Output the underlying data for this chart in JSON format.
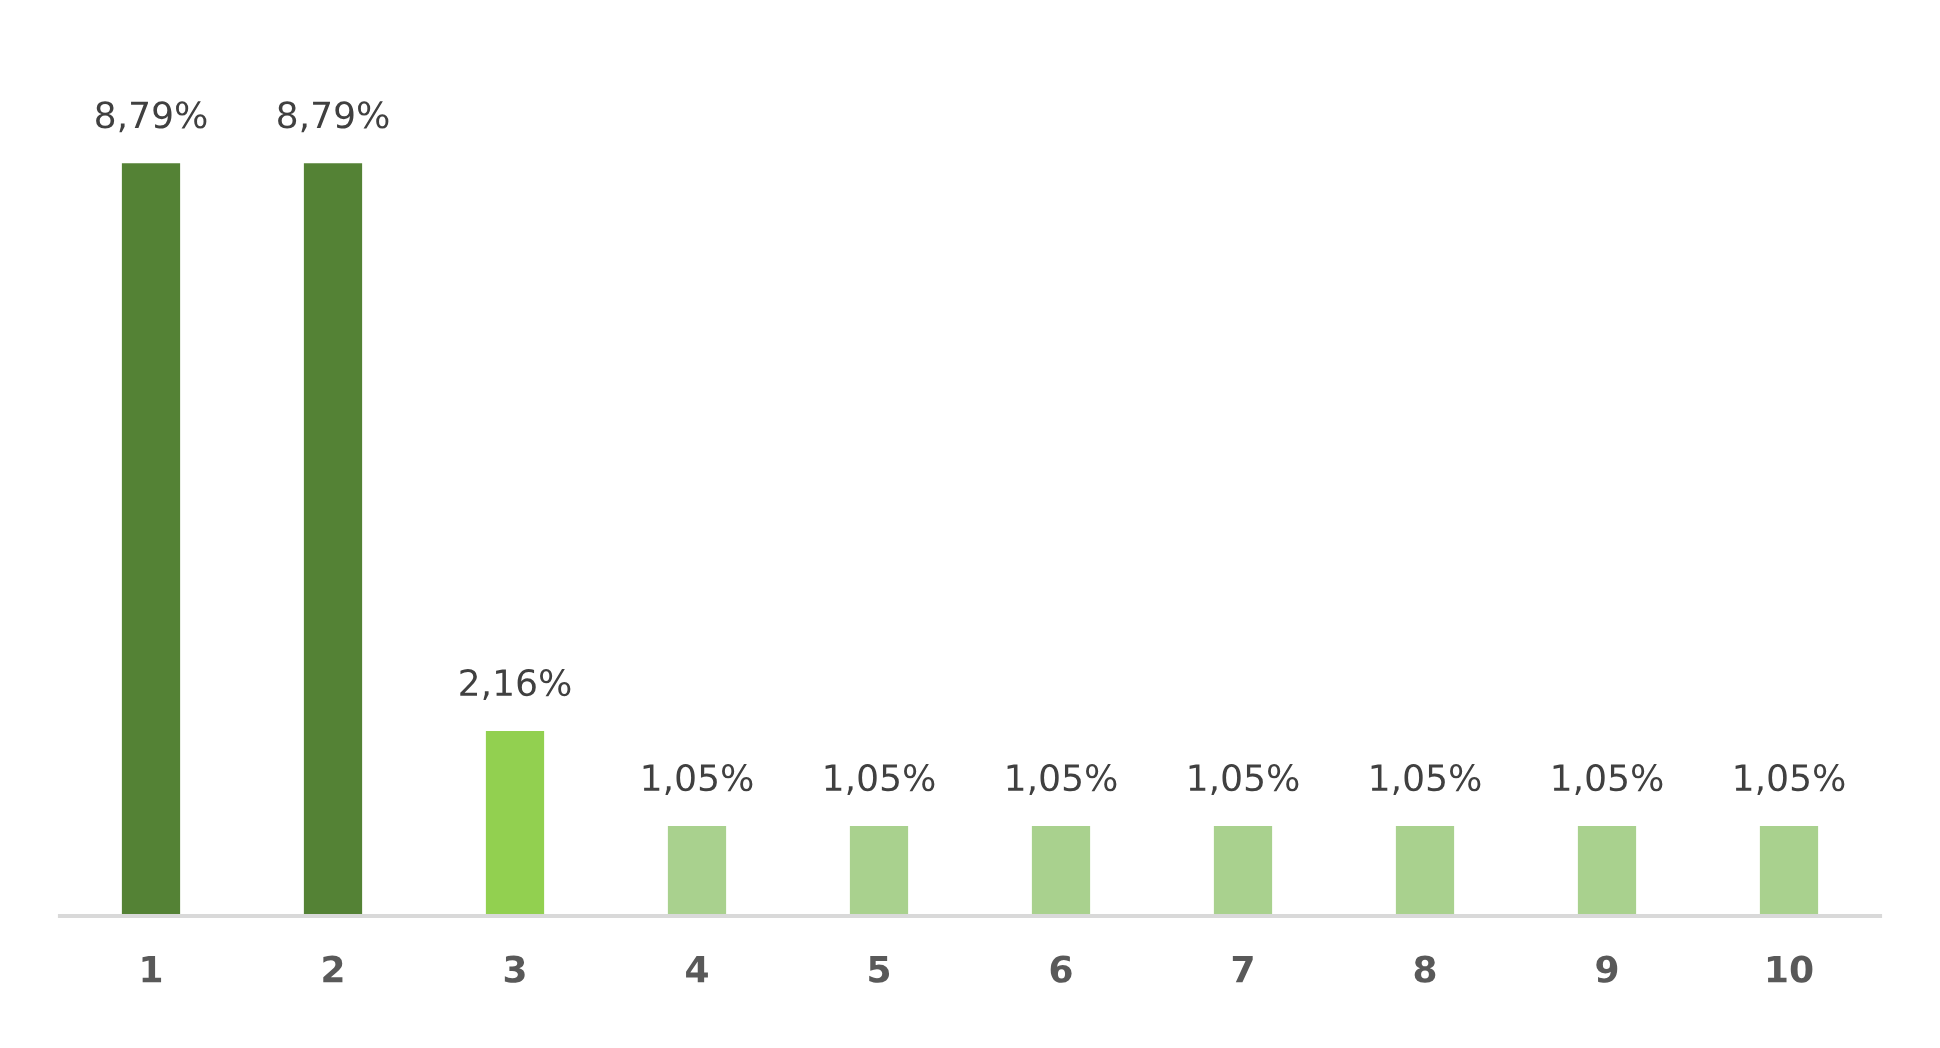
{
  "chart_data": {
    "type": "bar",
    "categories": [
      "1",
      "2",
      "3",
      "4",
      "5",
      "6",
      "7",
      "8",
      "9",
      "10"
    ],
    "values": [
      8.79,
      8.79,
      2.16,
      1.05,
      1.05,
      1.05,
      1.05,
      1.05,
      1.05,
      1.05
    ],
    "colors": [
      "#548235",
      "#548235",
      "#92d050",
      "#a9d18e",
      "#a9d18e",
      "#a9d18e",
      "#a9d18e",
      "#a9d18e",
      "#a9d18e",
      "#a9d18e"
    ],
    "value_labels": [
      "8,79%",
      "8,79%",
      "2,16%",
      "1,05%",
      "1,05%",
      "1,05%",
      "1,05%",
      "1,05%",
      "1,05%",
      "1,05%"
    ],
    "tick_labels": "x",
    "grid": false
  }
}
